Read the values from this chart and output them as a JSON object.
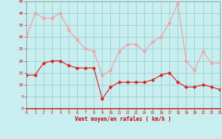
{
  "hours": [
    0,
    1,
    2,
    3,
    4,
    5,
    6,
    7,
    8,
    9,
    10,
    11,
    12,
    13,
    14,
    15,
    16,
    17,
    18,
    19,
    20,
    21,
    22,
    23
  ],
  "wind_avg": [
    14,
    14,
    19,
    20,
    20,
    18,
    17,
    17,
    17,
    4,
    9,
    11,
    11,
    11,
    11,
    12,
    14,
    15,
    11,
    9,
    9,
    10,
    9,
    8
  ],
  "wind_gust": [
    30,
    40,
    38,
    38,
    40,
    33,
    29,
    25,
    24,
    14,
    16,
    24,
    27,
    27,
    24,
    28,
    30,
    36,
    44,
    20,
    16,
    24,
    19,
    19
  ],
  "avg_color": "#dd2222",
  "gust_color": "#f4a0a0",
  "bg_color": "#c8eef0",
  "grid_color": "#99cccc",
  "xlabel": "Vent moyen/en rafales ( km/h )",
  "ylim": [
    0,
    45
  ],
  "yticks": [
    0,
    5,
    10,
    15,
    20,
    25,
    30,
    35,
    40,
    45
  ],
  "axis_color": "#cc0000",
  "tick_color": "#cc0000",
  "label_color": "#cc0000",
  "spine_color": "#888888"
}
